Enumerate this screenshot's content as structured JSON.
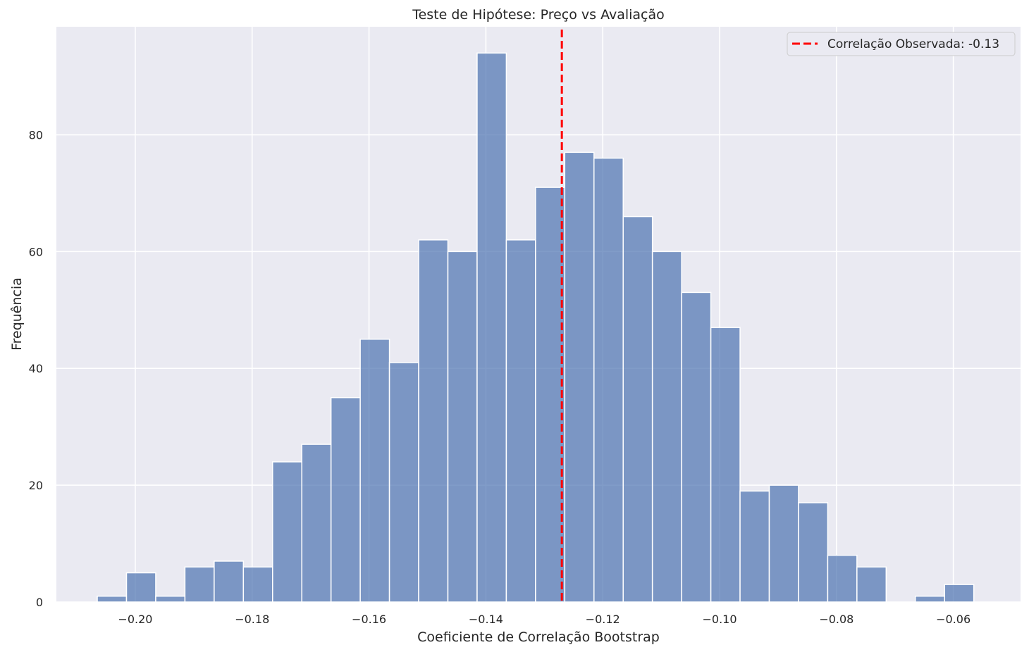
{
  "chart_data": {
    "type": "bar",
    "title": "Teste de Hipótese: Preço vs Avaliação",
    "xlabel": "Coeficiente de Correlação Bootstrap",
    "ylabel": "Frequência",
    "xlim": [
      -0.2135,
      -0.0485
    ],
    "ylim": [
      0,
      98.5
    ],
    "bin_start": -0.2065,
    "bin_width": 0.005,
    "counts": [
      1,
      5,
      1,
      6,
      7,
      6,
      24,
      27,
      35,
      45,
      41,
      62,
      60,
      94,
      62,
      71,
      77,
      76,
      66,
      60,
      53,
      47,
      19,
      20,
      17,
      8,
      6,
      0,
      1,
      3
    ],
    "xticks": [
      -0.2,
      -0.18,
      -0.16,
      -0.14,
      -0.12,
      -0.1,
      -0.08,
      -0.06
    ],
    "xtick_labels": [
      "−0.20",
      "−0.18",
      "−0.16",
      "−0.14",
      "−0.12",
      "−0.10",
      "−0.08",
      "−0.06"
    ],
    "yticks": [
      0,
      20,
      40,
      60,
      80
    ],
    "ytick_labels": [
      "0",
      "20",
      "40",
      "60",
      "80"
    ],
    "grid": true,
    "observed_line": {
      "x": -0.127,
      "label": "Correlação Observada: -0.13",
      "color": "#ff0000"
    },
    "bar_color": "#4c72b0",
    "background_color": "#eaeaf2",
    "legend_position": "top-right"
  }
}
